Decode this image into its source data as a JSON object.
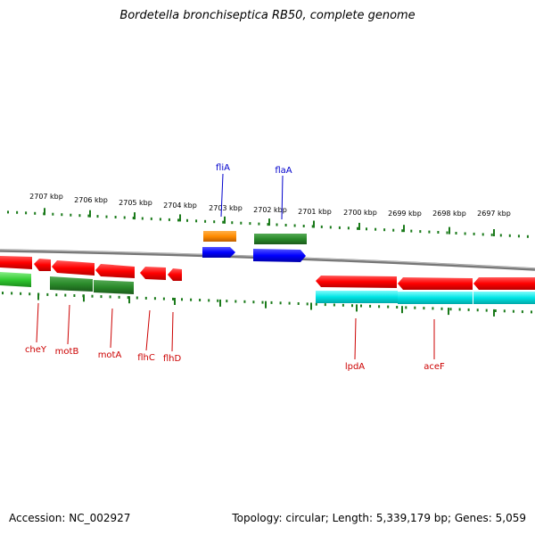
{
  "title": "Bordetella bronchiseptica RB50, complete genome",
  "footer": {
    "accession": "Accession: NC_002927",
    "stats": "Topology: circular; Length: 5,339,179 bp; Genes: 5,059"
  },
  "scale": {
    "labels": [
      "2707 kbp",
      "2706 kbp",
      "2705 kbp",
      "2704 kbp",
      "2703 kbp",
      "2702 kbp",
      "2701 kbp",
      "2700 kbp",
      "2699 kbp",
      "2698 kbp",
      "2697 kbp"
    ],
    "tick_color": "#1a7a1a"
  },
  "backbone_color": "#808080",
  "genes": [
    {
      "label": "fliA",
      "track": "top",
      "color": "#0000ff",
      "label_color": "#0000cc"
    },
    {
      "label": "flaA",
      "track": "top",
      "color": "#0000ff",
      "label_color": "#0000cc"
    },
    {
      "label": "cheY",
      "track": "bottom",
      "color": "#ff0000",
      "label_color": "#cc0000"
    },
    {
      "label": "motB",
      "track": "bottom",
      "color": "#ff0000",
      "label_color": "#cc0000"
    },
    {
      "label": "motA",
      "track": "bottom",
      "color": "#ff0000",
      "label_color": "#cc0000"
    },
    {
      "label": "flhC",
      "track": "bottom",
      "color": "#ff0000",
      "label_color": "#cc0000"
    },
    {
      "label": "flhD",
      "track": "bottom",
      "color": "#ff0000",
      "label_color": "#cc0000"
    },
    {
      "label": "lpdA",
      "track": "bottom",
      "color": "#ff0000",
      "label_color": "#cc0000"
    },
    {
      "label": "aceF",
      "track": "bottom",
      "color": "#ff0000",
      "label_color": "#cc0000"
    }
  ],
  "feature_colors": {
    "cds": "#ff0000",
    "gene_fwd": "#0000ff",
    "gene_green": "#2a8a2a",
    "orange": "#ff8c00",
    "cyan": "#00e5e5",
    "light_green": "#33cc33"
  }
}
